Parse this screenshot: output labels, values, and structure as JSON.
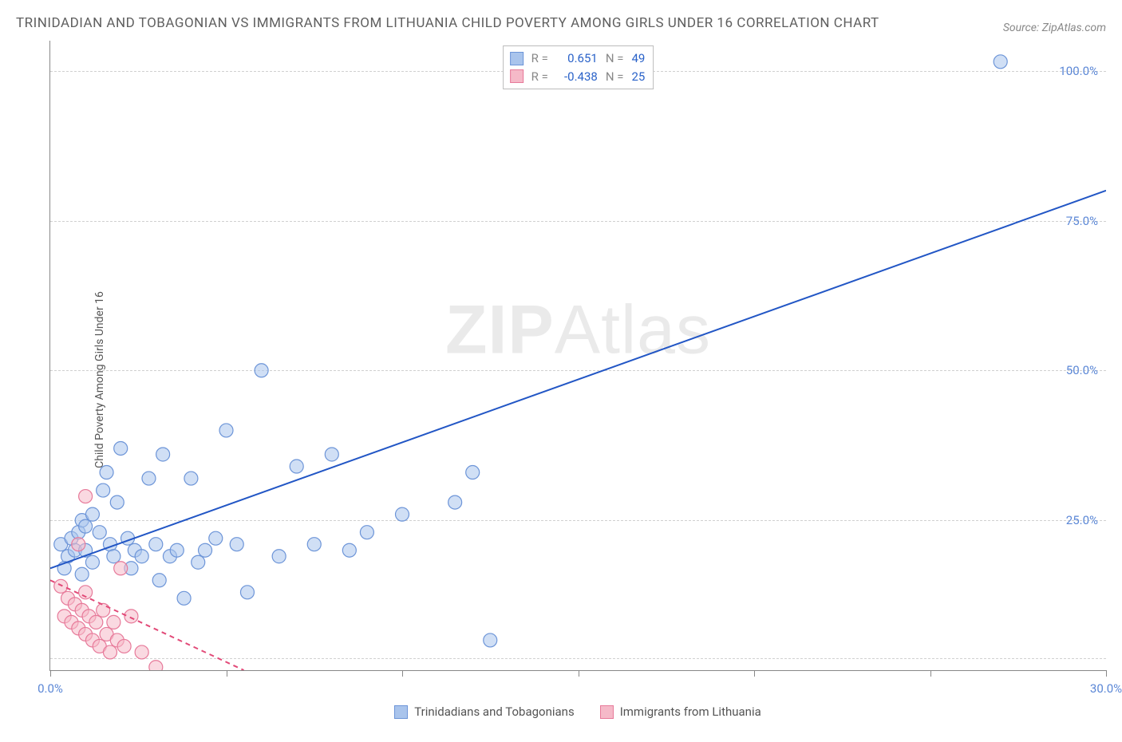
{
  "title": "TRINIDADIAN AND TOBAGONIAN VS IMMIGRANTS FROM LITHUANIA CHILD POVERTY AMONG GIRLS UNDER 16 CORRELATION CHART",
  "source_label": "Source: ZipAtlas.com",
  "ylabel": "Child Poverty Among Girls Under 16",
  "watermark_bold": "ZIP",
  "watermark_rest": "Atlas",
  "chart": {
    "type": "scatter",
    "xlim": [
      0,
      30
    ],
    "ylim": [
      0,
      105
    ],
    "xticks": [
      0,
      5,
      10,
      15,
      20,
      25,
      30
    ],
    "xtick_labels": [
      "0.0%",
      "",
      "",
      "",
      "",
      "",
      "30.0%"
    ],
    "yticks": [
      25,
      50,
      75,
      100
    ],
    "ytick_labels": [
      "25.0%",
      "50.0%",
      "75.0%",
      "100.0%"
    ],
    "grid_dash_y": [
      2,
      25,
      50,
      75,
      100
    ],
    "axis_color": "#888888",
    "grid_color": "#d0d0d0",
    "background_color": "#ffffff",
    "marker_radius": 8.5,
    "marker_stroke_width": 1.2,
    "series": [
      {
        "name": "Trinidadians and Tobagonians",
        "fill": "#a9c4ec",
        "fill_opacity": 0.55,
        "stroke": "#6d95d8",
        "r_label": "R =",
        "r_value": "0.651",
        "n_label": "N =",
        "n_value": "49",
        "trend": {
          "x1": 0,
          "y1": 17,
          "x2": 30,
          "y2": 80,
          "color": "#2256c5",
          "width": 2,
          "dash": ""
        },
        "points": [
          [
            0.3,
            21
          ],
          [
            0.5,
            19
          ],
          [
            0.6,
            22
          ],
          [
            0.7,
            20
          ],
          [
            0.8,
            23
          ],
          [
            0.9,
            25
          ],
          [
            1.0,
            20
          ],
          [
            1.0,
            24
          ],
          [
            1.2,
            18
          ],
          [
            1.2,
            26
          ],
          [
            1.4,
            23
          ],
          [
            1.5,
            30
          ],
          [
            1.6,
            33
          ],
          [
            1.7,
            21
          ],
          [
            1.8,
            19
          ],
          [
            1.9,
            28
          ],
          [
            2.0,
            37
          ],
          [
            2.2,
            22
          ],
          [
            2.3,
            17
          ],
          [
            2.4,
            20
          ],
          [
            2.6,
            19
          ],
          [
            2.8,
            32
          ],
          [
            3.0,
            21
          ],
          [
            3.1,
            15
          ],
          [
            3.2,
            36
          ],
          [
            3.4,
            19
          ],
          [
            3.6,
            20
          ],
          [
            3.8,
            12
          ],
          [
            4.0,
            32
          ],
          [
            4.2,
            18
          ],
          [
            4.4,
            20
          ],
          [
            4.7,
            22
          ],
          [
            5.0,
            40
          ],
          [
            5.3,
            21
          ],
          [
            5.6,
            13
          ],
          [
            6.0,
            50
          ],
          [
            6.5,
            19
          ],
          [
            7.0,
            34
          ],
          [
            7.5,
            21
          ],
          [
            8.0,
            36
          ],
          [
            8.5,
            20
          ],
          [
            9.0,
            23
          ],
          [
            10.0,
            26
          ],
          [
            11.5,
            28
          ],
          [
            12.5,
            5
          ],
          [
            12.0,
            33
          ],
          [
            27.0,
            101.5
          ],
          [
            0.4,
            17
          ],
          [
            0.9,
            16
          ]
        ]
      },
      {
        "name": "Immigrants from Lithuania",
        "fill": "#f5b9c8",
        "fill_opacity": 0.55,
        "stroke": "#e77a9a",
        "r_label": "R =",
        "r_value": "-0.438",
        "n_label": "N =",
        "n_value": "25",
        "trend": {
          "x1": 0,
          "y1": 15,
          "x2": 5.5,
          "y2": 0,
          "color": "#e24a78",
          "width": 2,
          "dash": "6 5"
        },
        "points": [
          [
            0.3,
            14
          ],
          [
            0.4,
            9
          ],
          [
            0.5,
            12
          ],
          [
            0.6,
            8
          ],
          [
            0.7,
            11
          ],
          [
            0.8,
            7
          ],
          [
            0.9,
            10
          ],
          [
            1.0,
            6
          ],
          [
            1.0,
            13
          ],
          [
            1.1,
            9
          ],
          [
            1.2,
            5
          ],
          [
            1.3,
            8
          ],
          [
            1.4,
            4
          ],
          [
            1.5,
            10
          ],
          [
            1.6,
            6
          ],
          [
            1.7,
            3
          ],
          [
            1.8,
            8
          ],
          [
            1.9,
            5
          ],
          [
            2.0,
            17
          ],
          [
            2.1,
            4
          ],
          [
            2.3,
            9
          ],
          [
            2.6,
            3
          ],
          [
            3.0,
            0.5
          ],
          [
            1.0,
            29
          ],
          [
            0.8,
            21
          ]
        ]
      }
    ]
  },
  "legend_bottom": [
    {
      "label": "Trinidadians and Tobagonians",
      "fill": "#a9c4ec",
      "stroke": "#6d95d8"
    },
    {
      "label": "Immigrants from Lithuania",
      "fill": "#f5b9c8",
      "stroke": "#e77a9a"
    }
  ]
}
